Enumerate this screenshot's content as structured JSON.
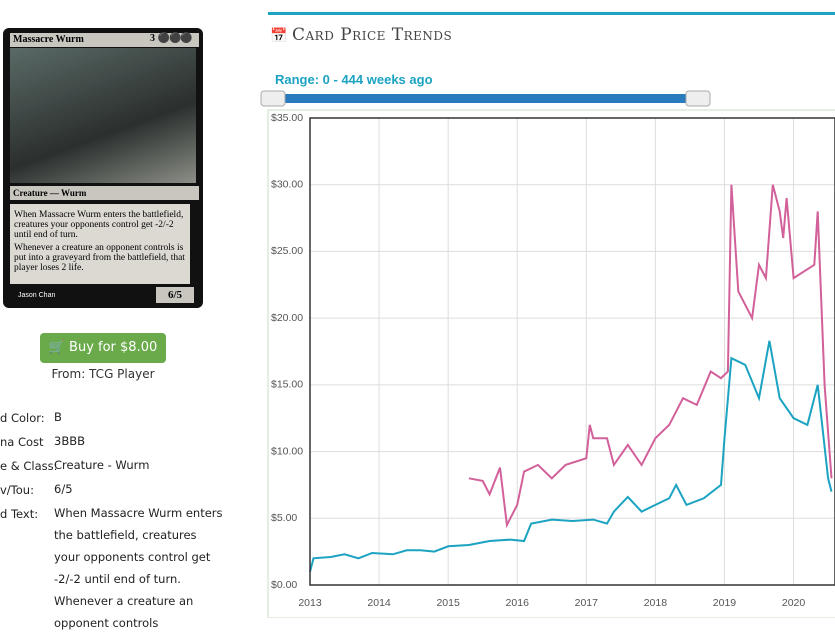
{
  "card": {
    "name": "Massacre Wurm",
    "mana": "3",
    "type_line": "Creature — Wurm",
    "rules": [
      "When Massacre Wurm enters the battlefield, creatures your opponents control get -2/-2 until end of turn.",
      "Whenever a creature an opponent controls is put into a graveyard from the battlefield, that player loses 2 life."
    ],
    "pt": "6/5",
    "artist": "Jason Chan"
  },
  "buy": {
    "button": "Buy for $8.00",
    "source": "From: TCG Player"
  },
  "details": [
    {
      "label": "d Color:",
      "value": "B"
    },
    {
      "label": "na Cost",
      "value": "3BBB"
    },
    {
      "label": "e & Class:",
      "value": "Creature - Wurm"
    },
    {
      "label": "v/Tou:",
      "value": "6/5"
    },
    {
      "label": "d Text:",
      "value": "When Massacre Wurm enters the battlefield, creatures your opponents control get -2/-2 until end of turn. Whenever a creature an opponent controls"
    }
  ],
  "header": "Card Price Trends",
  "range": "Range: 0 - 444 weeks ago",
  "chart_data": {
    "type": "line",
    "xlim": [
      2013,
      2020.6
    ],
    "xticks": [
      2013,
      2014,
      2015,
      2016,
      2017,
      2018,
      2019,
      2020
    ],
    "ylim": [
      0,
      35
    ],
    "yticks": [
      {
        "value": 0,
        "label": "$0.00"
      },
      {
        "value": 5,
        "label": "$5.00"
      },
      {
        "value": 10,
        "label": "$10.00"
      },
      {
        "value": 15,
        "label": "$15.00"
      },
      {
        "value": 20,
        "label": "$20.00"
      },
      {
        "value": 25,
        "label": "$25.00"
      },
      {
        "value": 30,
        "label": "$30.00"
      },
      {
        "value": 35,
        "label": "$35.00"
      }
    ],
    "grid": true,
    "series": [
      {
        "color": "#d2609a",
        "x": [
          2015.3,
          2015.5,
          2015.6,
          2015.75,
          2015.85,
          2016.0,
          2016.1,
          2016.3,
          2016.5,
          2016.7,
          2017.0,
          2017.05,
          2017.1,
          2017.3,
          2017.4,
          2017.6,
          2017.8,
          2018.0,
          2018.2,
          2018.4,
          2018.6,
          2018.8,
          2018.95,
          2019.05,
          2019.1,
          2019.2,
          2019.4,
          2019.5,
          2019.6,
          2019.7,
          2019.8,
          2019.85,
          2019.9,
          2020.0,
          2020.3,
          2020.35,
          2020.45,
          2020.55
        ],
        "values": [
          8.0,
          7.8,
          6.8,
          8.8,
          4.5,
          6.0,
          8.5,
          9.0,
          8.0,
          9.0,
          9.5,
          12.0,
          11.0,
          11.0,
          9.0,
          10.5,
          9.0,
          11.0,
          12.0,
          14.0,
          13.5,
          16.0,
          15.5,
          16.0,
          30.0,
          22.0,
          20.0,
          24.0,
          23.0,
          30.0,
          28.0,
          26.0,
          29.0,
          23.0,
          24.0,
          28.0,
          15.0,
          8.0
        ]
      },
      {
        "color": "#1ba3c1",
        "x": [
          2013.0,
          2013.05,
          2013.3,
          2013.5,
          2013.7,
          2013.9,
          2014.2,
          2014.4,
          2014.6,
          2014.8,
          2015.0,
          2015.3,
          2015.6,
          2015.9,
          2016.1,
          2016.2,
          2016.5,
          2016.8,
          2017.1,
          2017.3,
          2017.4,
          2017.6,
          2017.8,
          2018.0,
          2018.2,
          2018.3,
          2018.45,
          2018.7,
          2018.95,
          2019.0,
          2019.1,
          2019.3,
          2019.5,
          2019.65,
          2019.8,
          2020.0,
          2020.2,
          2020.35,
          2020.5,
          2020.55
        ],
        "values": [
          1.0,
          2.0,
          2.1,
          2.3,
          2.0,
          2.4,
          2.3,
          2.6,
          2.6,
          2.5,
          2.9,
          3.0,
          3.3,
          3.4,
          3.3,
          4.6,
          4.9,
          4.8,
          4.9,
          4.6,
          5.5,
          6.6,
          5.5,
          6.0,
          6.5,
          7.5,
          6.0,
          6.5,
          7.5,
          11.0,
          17.0,
          16.5,
          14.0,
          18.3,
          14.0,
          12.5,
          12.0,
          15.0,
          8.0,
          7.0
        ]
      }
    ]
  }
}
